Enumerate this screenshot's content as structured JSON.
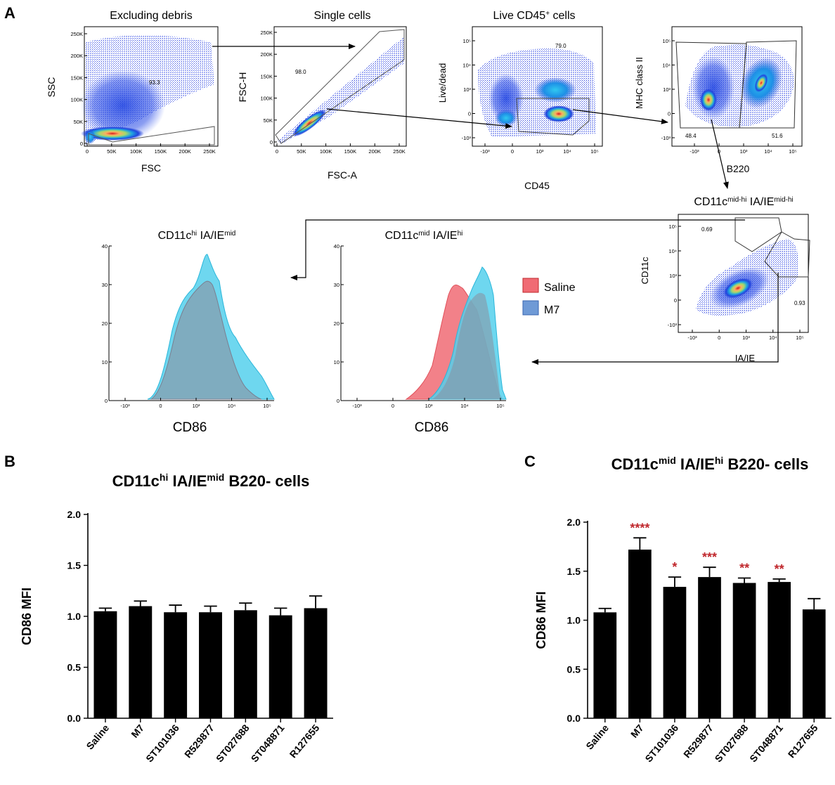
{
  "panel_labels": {
    "a": "A",
    "b": "B",
    "c": "C"
  },
  "flow": {
    "p1": {
      "title": "Excluding debris",
      "xlabel": "FSC",
      "ylabel": "SSC",
      "gate_value": "93.3",
      "xticks": [
        "0",
        "50K",
        "100K",
        "150K",
        "200K",
        "250K"
      ],
      "yticks": [
        "0",
        "50K",
        "100K",
        "150K",
        "200K",
        "250K"
      ]
    },
    "p2": {
      "title": "Single cells",
      "xlabel": "FSC-A",
      "ylabel": "FSC-H",
      "gate_value": "98.0",
      "xticks": [
        "0",
        "50K",
        "100K",
        "150K",
        "200K",
        "250K"
      ],
      "yticks": [
        "0",
        "50K",
        "100K",
        "150K",
        "200K",
        "250K"
      ]
    },
    "p3": {
      "title": "Live CD45",
      "title_sup": "+",
      "title_tail": " cells",
      "xlabel": "CD45",
      "ylabel": "Live/dead",
      "gate_value": "79.0",
      "xticks": [
        "-10³",
        "0",
        "10³",
        "10⁴",
        "10⁵"
      ],
      "yticks": [
        "-10³",
        "0",
        "10³",
        "10⁴",
        "10⁵"
      ]
    },
    "p4": {
      "ylabel": "MHC class II",
      "xlabel": "B220",
      "gate_left": "48.4",
      "gate_right": "51.6",
      "xticks": [
        "-10³",
        "0",
        "10³",
        "10⁴",
        "10⁵"
      ],
      "yticks": [
        "-10³",
        "0",
        "10³",
        "10⁴",
        "10⁵"
      ]
    },
    "p5": {
      "title_base": "CD11c",
      "title_sup": "mid-hi",
      "title_mid": " IA/IE",
      "title_sup2": "mid-hi",
      "ylabel": "CD11c",
      "xlabel": "IA/IE",
      "gate_top": "0.69",
      "gate_right": "0.93",
      "xticks": [
        "-10³",
        "0",
        "10³",
        "10⁴",
        "10⁵"
      ],
      "yticks": [
        "-10³",
        "0",
        "10³",
        "10⁴",
        "10⁵"
      ]
    },
    "h1": {
      "title_base": "CD11c",
      "title_sup": "hi",
      "title_mid": " IA/IE",
      "title_sup2": "mid",
      "xlabel": "CD86",
      "yticks": [
        "0",
        "10",
        "20",
        "30",
        "40"
      ],
      "xticks": [
        "-10³",
        "0",
        "10³",
        "10⁴",
        "10⁵"
      ]
    },
    "h2": {
      "title_base": "CD11c",
      "title_sup": "mid",
      "title_mid": " IA/IE",
      "title_sup2": "hi",
      "xlabel": "CD86",
      "yticks": [
        "0",
        "10",
        "20",
        "30",
        "40"
      ],
      "xticks": [
        "-10³",
        "0",
        "10³",
        "10⁴",
        "10⁵"
      ]
    },
    "legend": [
      {
        "name": "Saline",
        "color": "#f06b74"
      },
      {
        "name": "M7",
        "color": "#6f9ad6"
      }
    ]
  },
  "chart_data": [
    {
      "type": "bar",
      "title_base": "CD11c",
      "title_sup": "hi",
      "title_mid": " IA/IE",
      "title_sup2": "mid",
      "title_tail": " B220- cells",
      "ylabel": "CD86 MFI",
      "xlabel": "",
      "ylim": [
        0,
        2.0
      ],
      "yticks": [
        "0.0",
        "0.5",
        "1.0",
        "1.5",
        "2.0"
      ],
      "categories": [
        "Saline",
        "M7",
        "ST101036",
        "R529877",
        "ST027688",
        "ST048871",
        "R127655"
      ],
      "values": [
        1.05,
        1.1,
        1.04,
        1.04,
        1.06,
        1.01,
        1.08
      ],
      "errors": [
        0.03,
        0.05,
        0.07,
        0.06,
        0.07,
        0.07,
        0.12
      ],
      "significance": [
        "",
        "",
        "",
        "",
        "",
        "",
        ""
      ]
    },
    {
      "type": "bar",
      "title_base": "CD11c",
      "title_sup": "mid",
      "title_mid": " IA/IE",
      "title_sup2": "hi",
      "title_tail": " B220- cells",
      "ylabel": "CD86 MFI",
      "xlabel": "",
      "ylim": [
        0,
        2.0
      ],
      "yticks": [
        "0.0",
        "0.5",
        "1.0",
        "1.5",
        "2.0"
      ],
      "categories": [
        "Saline",
        "M7",
        "ST101036",
        "R529877",
        "ST027688",
        "ST048871",
        "R127655"
      ],
      "values": [
        1.08,
        1.72,
        1.34,
        1.44,
        1.38,
        1.39,
        1.11
      ],
      "errors": [
        0.04,
        0.12,
        0.1,
        0.1,
        0.05,
        0.03,
        0.11
      ],
      "significance": [
        "",
        "****",
        "*",
        "***",
        "**",
        "**",
        ""
      ],
      "significance_color": "#c0282d"
    }
  ]
}
